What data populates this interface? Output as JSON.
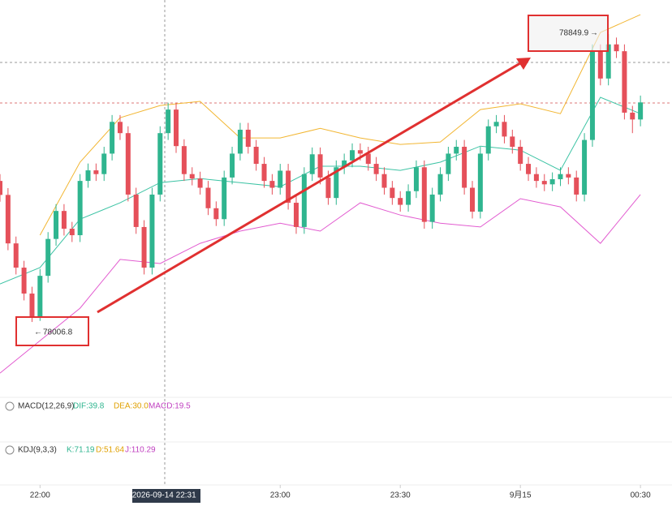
{
  "chart_data": {
    "type": "candlestick",
    "up_color": "#2fb58f",
    "down_color": "#e5505a",
    "xlim": [
      -10,
      152
    ],
    "ylim": [
      77786,
      78950
    ],
    "x": [
      -10,
      -8,
      -6,
      -4,
      -2,
      0,
      2,
      4,
      6,
      8,
      10,
      12,
      14,
      16,
      18,
      20,
      22,
      24,
      26,
      28,
      30,
      32,
      34,
      36,
      38,
      40,
      42,
      44,
      46,
      48,
      50,
      52,
      54,
      56,
      58,
      60,
      62,
      64,
      66,
      68,
      70,
      72,
      74,
      76,
      78,
      80,
      82,
      84,
      86,
      88,
      90,
      92,
      94,
      96,
      98,
      100,
      102,
      104,
      106,
      108,
      110,
      112,
      114,
      116,
      118,
      120,
      122,
      124,
      126,
      128,
      130,
      132,
      134,
      136,
      138,
      140,
      142,
      144,
      146,
      148,
      150
    ],
    "open": [
      78420,
      78379,
      78237,
      78166,
      78090,
      78020,
      78142,
      78250,
      78332,
      78280,
      78261,
      78420,
      78451,
      78440,
      78500,
      78593,
      78560,
      78380,
      78285,
      78166,
      78380,
      78560,
      78629,
      78522,
      78440,
      78427,
      78400,
      78340,
      78308,
      78430,
      78500,
      78570,
      78520,
      78470,
      78420,
      78400,
      78450,
      78356,
      78285,
      78440,
      78498,
      78430,
      78370,
      78460,
      78480,
      78510,
      78500,
      78470,
      78440,
      78400,
      78370,
      78350,
      78390,
      78460,
      78300,
      78380,
      78440,
      78500,
      78520,
      78400,
      78330,
      78500,
      78580,
      78593,
      78550,
      78520,
      78470,
      78440,
      78420,
      78410,
      78425,
      78440,
      78430,
      78380,
      78540,
      78800,
      78720,
      78820,
      78800,
      78620,
      78600
    ],
    "high": [
      78440,
      78399,
      78257,
      78186,
      78110,
      78162,
      78270,
      78352,
      78352,
      78300,
      78440,
      78471,
      78471,
      78520,
      78613,
      78613,
      78580,
      78400,
      78305,
      78400,
      78580,
      78649,
      78649,
      78542,
      78460,
      78447,
      78420,
      78360,
      78450,
      78520,
      78590,
      78590,
      78540,
      78490,
      78440,
      78470,
      78470,
      78376,
      78460,
      78518,
      78518,
      78450,
      78480,
      78500,
      78530,
      78530,
      78520,
      78490,
      78460,
      78420,
      78390,
      78410,
      78480,
      78480,
      78400,
      78460,
      78520,
      78540,
      78540,
      78420,
      78520,
      78600,
      78613,
      78613,
      78570,
      78540,
      78490,
      78460,
      78440,
      78445,
      78460,
      78460,
      78450,
      78560,
      78820,
      78820,
      78849.9,
      78840,
      78820,
      78640,
      78670
    ],
    "low": [
      78359,
      78217,
      78146,
      78070,
      78006.8,
      78010,
      78122,
      78230,
      78260,
      78241,
      78241,
      78400,
      78420,
      78420,
      78480,
      78540,
      78360,
      78265,
      78146,
      78146,
      78360,
      78540,
      78502,
      78420,
      78407,
      78380,
      78320,
      78288,
      78288,
      78410,
      78480,
      78500,
      78450,
      78400,
      78380,
      78380,
      78336,
      78265,
      78265,
      78420,
      78410,
      78350,
      78350,
      78440,
      78460,
      78480,
      78450,
      78420,
      78380,
      78350,
      78330,
      78330,
      78370,
      78280,
      78280,
      78360,
      78420,
      78480,
      78380,
      78310,
      78310,
      78480,
      78560,
      78530,
      78500,
      78450,
      78420,
      78400,
      78390,
      78390,
      78405,
      78410,
      78360,
      78360,
      78520,
      78700,
      78700,
      78780,
      78600,
      78560,
      78580
    ],
    "close": [
      78379,
      78237,
      78166,
      78090,
      78020,
      78142,
      78250,
      78332,
      78280,
      78261,
      78420,
      78451,
      78440,
      78500,
      78593,
      78560,
      78380,
      78285,
      78166,
      78380,
      78560,
      78629,
      78522,
      78440,
      78427,
      78400,
      78340,
      78308,
      78430,
      78500,
      78570,
      78520,
      78470,
      78420,
      78400,
      78450,
      78356,
      78285,
      78440,
      78498,
      78430,
      78370,
      78460,
      78480,
      78510,
      78500,
      78470,
      78440,
      78400,
      78370,
      78350,
      78390,
      78460,
      78300,
      78380,
      78440,
      78500,
      78520,
      78400,
      78330,
      78500,
      78580,
      78593,
      78550,
      78520,
      78470,
      78440,
      78420,
      78410,
      78425,
      78440,
      78430,
      78380,
      78540,
      78800,
      78720,
      78820,
      78800,
      78620,
      78600,
      78650
    ],
    "overlays": [
      {
        "color": "#f2b632",
        "x": [
          -10,
          0,
          10,
          20,
          30,
          40,
          50,
          60,
          70,
          80,
          90,
          100,
          110,
          120,
          130,
          140,
          150
        ],
        "values": [
          null,
          78261,
          78475,
          78605,
          78641,
          78653,
          78546,
          78546,
          78574,
          78546,
          78527,
          78534,
          78629,
          78646,
          78617,
          78855,
          78907
        ]
      },
      {
        "color": "#3cc3a4",
        "x": [
          -10,
          0,
          10,
          20,
          30,
          40,
          50,
          60,
          70,
          80,
          90,
          100,
          110,
          120,
          130,
          140,
          150
        ],
        "values": [
          78118,
          78166,
          78308,
          78356,
          78415,
          78427,
          78415,
          78403,
          78463,
          78463,
          78451,
          78475,
          78522,
          78510,
          78451,
          78665,
          78617
        ]
      },
      {
        "color": "#e25bd0",
        "x": [
          -10,
          0,
          10,
          20,
          30,
          40,
          50,
          60,
          70,
          80,
          90,
          100,
          110,
          120,
          130,
          140,
          150
        ],
        "values": [
          77857,
          77952,
          78047,
          78190,
          78178,
          78237,
          78273,
          78296,
          78273,
          78356,
          78320,
          78296,
          78285,
          78368,
          78344,
          78237,
          78380
        ]
      }
    ],
    "xticks": [
      {
        "value": 0,
        "label": "22:00"
      },
      {
        "value": 60,
        "label": "23:00"
      },
      {
        "value": 90,
        "label": "23:30"
      },
      {
        "value": 120,
        "label": "9月15"
      },
      {
        "value": 150,
        "label": "00:30"
      }
    ],
    "crosshair": {
      "value": 31,
      "label": "2026-09-14 22:31"
    },
    "indicators": {
      "macd": {
        "name": "MACD(12,26,9)",
        "dif": "DIF:39.8",
        "dea": "DEA:30.0",
        "macd": "MACD:19.5"
      },
      "kdj": {
        "name": "KDJ(9,3,3)",
        "k": "K:71.19",
        "d": "D:51.64",
        "j": "J:110.29"
      }
    }
  }
}
